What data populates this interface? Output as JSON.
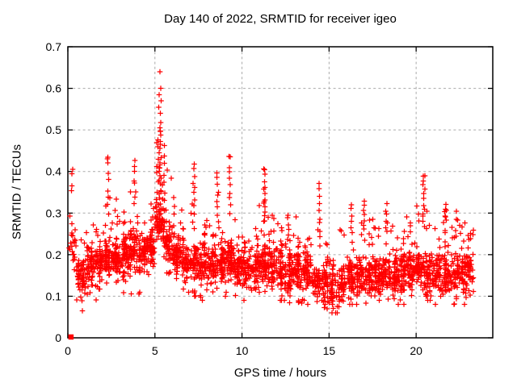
{
  "chart_data": {
    "type": "scatter",
    "title": "Day 140 of 2022, SRMTID for receiver igeo",
    "xlabel": "GPS time / hours",
    "ylabel": "SRMTID / TECUs",
    "xlim": [
      0,
      24.4
    ],
    "ylim": [
      0,
      0.7
    ],
    "xticks": [
      0,
      5,
      10,
      15,
      20
    ],
    "xtick_labels": [
      "0",
      "5",
      "10",
      "15",
      "20"
    ],
    "yticks": [
      0,
      0.1,
      0.2,
      0.3,
      0.4,
      0.5,
      0.6,
      0.7
    ],
    "ytick_labels": [
      "0",
      "0.1",
      "0.2",
      "0.3",
      "0.4",
      "0.5",
      "0.6",
      "0.7"
    ],
    "grid": "dashed, at every major tick, mirrored ticks on all four borders",
    "legend": "none",
    "marker": {
      "shape": "plus",
      "color": "#ff0000",
      "size": 7
    },
    "x_data_range": [
      0.05,
      23.3
    ],
    "description": "Dense scatter of SRMTID values every ~30 s across the day; bulk band 0.1-0.25 TECUs with vertical spike clusters, largest near hour 5.3 reaching 0.64",
    "density_bands": [
      [
        0.05,
        0.5,
        22,
        0.13,
        0.38,
        0.22
      ],
      [
        0.5,
        1,
        60,
        0.065,
        0.3,
        0.15
      ],
      [
        1,
        1.5,
        62,
        0.08,
        0.31,
        0.17
      ],
      [
        1.5,
        2,
        62,
        0.09,
        0.33,
        0.18
      ],
      [
        2,
        2.5,
        65,
        0.09,
        0.36,
        0.19
      ],
      [
        2.5,
        3,
        65,
        0.1,
        0.34,
        0.19
      ],
      [
        3,
        3.5,
        65,
        0.1,
        0.36,
        0.2
      ],
      [
        3.5,
        4,
        65,
        0.1,
        0.4,
        0.21
      ],
      [
        4,
        4.5,
        62,
        0.1,
        0.34,
        0.2
      ],
      [
        4.5,
        5,
        62,
        0.11,
        0.38,
        0.22
      ],
      [
        5,
        5.5,
        70,
        0.15,
        0.52,
        0.28
      ],
      [
        5.5,
        6,
        62,
        0.13,
        0.45,
        0.24
      ],
      [
        6,
        6.5,
        60,
        0.12,
        0.34,
        0.2
      ],
      [
        6.5,
        7,
        60,
        0.11,
        0.31,
        0.18
      ],
      [
        7,
        7.5,
        62,
        0.1,
        0.36,
        0.18
      ],
      [
        7.5,
        8,
        62,
        0.09,
        0.31,
        0.17
      ],
      [
        8,
        8.5,
        62,
        0.09,
        0.33,
        0.17
      ],
      [
        8.5,
        9,
        62,
        0.1,
        0.36,
        0.18
      ],
      [
        9,
        9.5,
        62,
        0.1,
        0.38,
        0.18
      ],
      [
        9.5,
        10,
        60,
        0.09,
        0.3,
        0.17
      ],
      [
        10,
        10.5,
        60,
        0.09,
        0.29,
        0.16
      ],
      [
        10.5,
        11,
        60,
        0.08,
        0.28,
        0.16
      ],
      [
        11,
        11.5,
        62,
        0.1,
        0.34,
        0.18
      ],
      [
        11.5,
        12,
        60,
        0.09,
        0.3,
        0.17
      ],
      [
        12,
        12.5,
        60,
        0.09,
        0.28,
        0.16
      ],
      [
        12.5,
        13,
        60,
        0.08,
        0.3,
        0.16
      ],
      [
        13,
        13.5,
        58,
        0.08,
        0.3,
        0.16
      ],
      [
        13.5,
        14,
        58,
        0.08,
        0.32,
        0.16
      ],
      [
        14,
        14.5,
        55,
        0.07,
        0.32,
        0.14
      ],
      [
        14.5,
        15,
        52,
        0.07,
        0.26,
        0.13
      ],
      [
        15,
        15.5,
        50,
        0.06,
        0.22,
        0.12
      ],
      [
        15.5,
        16,
        55,
        0.07,
        0.26,
        0.13
      ],
      [
        16,
        16.5,
        60,
        0.08,
        0.31,
        0.15
      ],
      [
        16.5,
        17,
        60,
        0.08,
        0.31,
        0.15
      ],
      [
        17,
        17.5,
        60,
        0.08,
        0.3,
        0.15
      ],
      [
        17.5,
        18,
        60,
        0.08,
        0.29,
        0.15
      ],
      [
        18,
        18.5,
        60,
        0.09,
        0.31,
        0.16
      ],
      [
        18.5,
        19,
        60,
        0.08,
        0.29,
        0.15
      ],
      [
        19,
        19.5,
        60,
        0.08,
        0.3,
        0.16
      ],
      [
        19.5,
        20,
        60,
        0.09,
        0.29,
        0.16
      ],
      [
        20,
        20.5,
        62,
        0.09,
        0.33,
        0.17
      ],
      [
        20.5,
        21,
        60,
        0.09,
        0.32,
        0.16
      ],
      [
        21,
        21.5,
        56,
        0.08,
        0.29,
        0.15
      ],
      [
        21.5,
        22,
        56,
        0.08,
        0.31,
        0.15
      ],
      [
        22,
        22.5,
        58,
        0.08,
        0.3,
        0.16
      ],
      [
        22.5,
        23,
        58,
        0.08,
        0.28,
        0.16
      ],
      [
        23,
        23.3,
        30,
        0.1,
        0.26,
        0.17
      ]
    ],
    "spike_clusters": [
      [
        0.25,
        0.08,
        4,
        0.35,
        0.41
      ],
      [
        2.3,
        0.1,
        8,
        0.3,
        0.435
      ],
      [
        3.85,
        0.1,
        8,
        0.32,
        0.43
      ],
      [
        5.3,
        0.12,
        20,
        0.34,
        0.52
      ],
      [
        5.15,
        0.1,
        8,
        0.3,
        0.48
      ],
      [
        5.55,
        0.1,
        9,
        0.28,
        0.46
      ],
      [
        6.1,
        0.08,
        5,
        0.25,
        0.34
      ],
      [
        7.25,
        0.12,
        9,
        0.3,
        0.42
      ],
      [
        8.6,
        0.1,
        9,
        0.28,
        0.4
      ],
      [
        9.3,
        0.1,
        9,
        0.3,
        0.43
      ],
      [
        11.28,
        0.1,
        13,
        0.28,
        0.41
      ],
      [
        12.65,
        0.08,
        6,
        0.24,
        0.3
      ],
      [
        14.45,
        0.1,
        9,
        0.24,
        0.37
      ],
      [
        16.3,
        0.08,
        6,
        0.25,
        0.32
      ],
      [
        17.0,
        0.08,
        7,
        0.26,
        0.33
      ],
      [
        18.3,
        0.08,
        6,
        0.25,
        0.32
      ],
      [
        20.45,
        0.12,
        12,
        0.27,
        0.385
      ],
      [
        21.7,
        0.08,
        6,
        0.25,
        0.32
      ],
      [
        22.3,
        0.06,
        3,
        0.26,
        0.3
      ]
    ],
    "extreme_points": [
      [
        5.28,
        0.64
      ],
      [
        5.33,
        0.6
      ],
      [
        5.25,
        0.585
      ],
      [
        5.35,
        0.57
      ],
      [
        5.22,
        0.555
      ],
      [
        5.31,
        0.54
      ],
      [
        2.28,
        0.43
      ],
      [
        9.32,
        0.435
      ],
      [
        20.5,
        0.39
      ]
    ],
    "origin_marker": {
      "x": 0.18,
      "y": 0.002,
      "shape": "filled-square"
    }
  },
  "colors": {
    "marker": "#ff0000",
    "grid": "#aaaaaa",
    "frame": "#000000",
    "background": "#ffffff",
    "text": "#000000"
  }
}
